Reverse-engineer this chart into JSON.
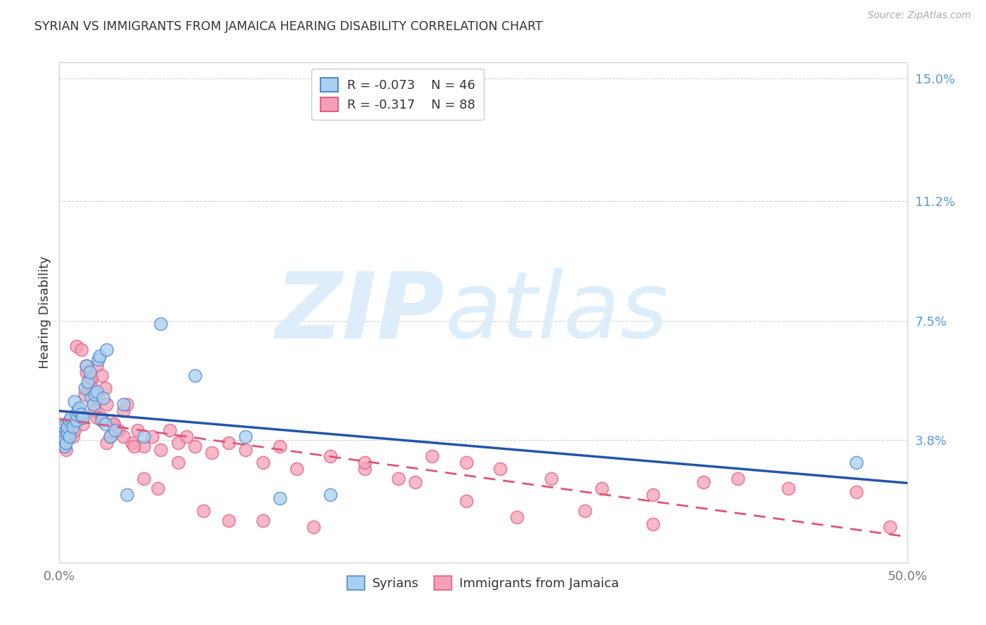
{
  "title": "SYRIAN VS IMMIGRANTS FROM JAMAICA HEARING DISABILITY CORRELATION CHART",
  "source": "Source: ZipAtlas.com",
  "ylabel": "Hearing Disability",
  "xlim": [
    0.0,
    0.5
  ],
  "ylim": [
    0.0,
    0.155
  ],
  "ytick_vals": [
    0.038,
    0.075,
    0.112,
    0.15
  ],
  "ytick_labels": [
    "3.8%",
    "7.5%",
    "11.2%",
    "15.0%"
  ],
  "xtick_vals": [
    0.0,
    0.5
  ],
  "xtick_labels": [
    "0.0%",
    "50.0%"
  ],
  "color_blue_fill": "#a8d0f0",
  "color_blue_edge": "#5588cc",
  "color_pink_fill": "#f5a0b8",
  "color_pink_edge": "#e06080",
  "line_blue": "#2255aa",
  "line_pink": "#dd5575",
  "bg_color": "#ffffff",
  "grid_color": "#cccccc",
  "title_color": "#333333",
  "ytick_color": "#5599dd",
  "xtick_color": "#777777",
  "source_color": "#aaaaaa",
  "watermark_color": "#ddeefa",
  "legend_R1": "-0.073",
  "legend_N1": "46",
  "legend_R2": "-0.317",
  "legend_N2": "88",
  "syrians_x": [
    0.001,
    0.001,
    0.002,
    0.002,
    0.003,
    0.003,
    0.004,
    0.004,
    0.005,
    0.005,
    0.006,
    0.006,
    0.007,
    0.008,
    0.009,
    0.01,
    0.01,
    0.011,
    0.012,
    0.013,
    0.014,
    0.015,
    0.016,
    0.017,
    0.018,
    0.019,
    0.02,
    0.021,
    0.022,
    0.023,
    0.024,
    0.025,
    0.026,
    0.027,
    0.028,
    0.03,
    0.033,
    0.038,
    0.04,
    0.05,
    0.06,
    0.08,
    0.11,
    0.13,
    0.16,
    0.47
  ],
  "syrians_y": [
    0.041,
    0.038,
    0.042,
    0.039,
    0.038,
    0.036,
    0.041,
    0.037,
    0.04,
    0.042,
    0.039,
    0.044,
    0.045,
    0.042,
    0.05,
    0.044,
    0.046,
    0.047,
    0.048,
    0.046,
    0.045,
    0.054,
    0.061,
    0.056,
    0.059,
    0.051,
    0.049,
    0.052,
    0.053,
    0.063,
    0.064,
    0.044,
    0.051,
    0.043,
    0.066,
    0.039,
    0.041,
    0.049,
    0.021,
    0.039,
    0.074,
    0.058,
    0.039,
    0.02,
    0.021,
    0.031
  ],
  "jamaica_x": [
    0.001,
    0.001,
    0.002,
    0.002,
    0.003,
    0.003,
    0.004,
    0.004,
    0.005,
    0.005,
    0.006,
    0.007,
    0.008,
    0.009,
    0.01,
    0.011,
    0.012,
    0.013,
    0.014,
    0.015,
    0.016,
    0.017,
    0.018,
    0.019,
    0.02,
    0.021,
    0.022,
    0.023,
    0.025,
    0.027,
    0.028,
    0.03,
    0.032,
    0.035,
    0.038,
    0.04,
    0.043,
    0.046,
    0.05,
    0.055,
    0.06,
    0.065,
    0.07,
    0.075,
    0.08,
    0.09,
    0.1,
    0.11,
    0.12,
    0.13,
    0.14,
    0.16,
    0.18,
    0.2,
    0.22,
    0.24,
    0.26,
    0.29,
    0.32,
    0.35,
    0.01,
    0.013,
    0.016,
    0.019,
    0.022,
    0.025,
    0.028,
    0.032,
    0.038,
    0.044,
    0.05,
    0.058,
    0.07,
    0.085,
    0.1,
    0.12,
    0.15,
    0.18,
    0.21,
    0.24,
    0.27,
    0.31,
    0.35,
    0.4,
    0.43,
    0.47,
    0.49,
    0.38
  ],
  "jamaica_y": [
    0.041,
    0.037,
    0.042,
    0.037,
    0.039,
    0.036,
    0.041,
    0.035,
    0.039,
    0.041,
    0.043,
    0.044,
    0.039,
    0.041,
    0.044,
    0.045,
    0.046,
    0.045,
    0.043,
    0.052,
    0.059,
    0.054,
    0.057,
    0.055,
    0.049,
    0.047,
    0.061,
    0.051,
    0.058,
    0.054,
    0.049,
    0.039,
    0.043,
    0.041,
    0.047,
    0.049,
    0.037,
    0.041,
    0.036,
    0.039,
    0.035,
    0.041,
    0.037,
    0.039,
    0.036,
    0.034,
    0.037,
    0.035,
    0.031,
    0.036,
    0.029,
    0.033,
    0.029,
    0.026,
    0.033,
    0.031,
    0.029,
    0.026,
    0.023,
    0.021,
    0.067,
    0.066,
    0.061,
    0.057,
    0.045,
    0.045,
    0.037,
    0.043,
    0.039,
    0.036,
    0.026,
    0.023,
    0.031,
    0.016,
    0.013,
    0.013,
    0.011,
    0.031,
    0.025,
    0.019,
    0.014,
    0.016,
    0.012,
    0.026,
    0.023,
    0.022,
    0.011,
    0.025
  ]
}
